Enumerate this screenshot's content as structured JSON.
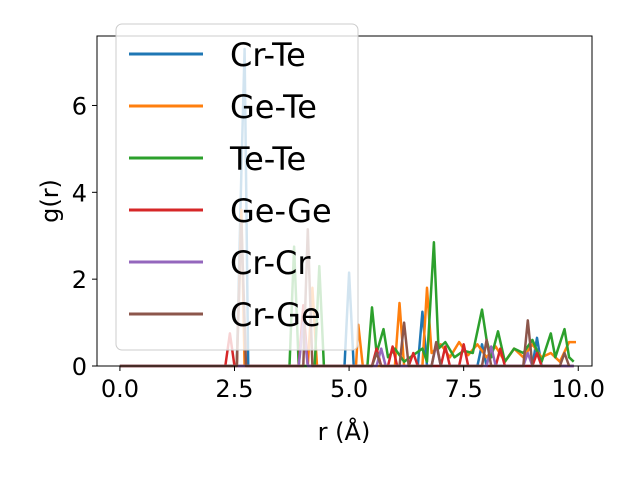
{
  "chart_data": {
    "type": "line",
    "title": "",
    "xlabel": "r (Å)",
    "ylabel": "g(r)",
    "xlim": [
      -0.5,
      10.3
    ],
    "ylim": [
      0,
      7.6
    ],
    "xticks": [
      0.0,
      2.5,
      5.0,
      7.5,
      10.0
    ],
    "xtick_labels": [
      "0.0",
      "2.5",
      "5.0",
      "7.5",
      "10.0"
    ],
    "yticks": [
      0,
      2,
      4,
      6
    ],
    "ytick_labels": [
      "0",
      "2",
      "4",
      "6"
    ],
    "grid": false,
    "legend_position": "upper-left",
    "series": [
      {
        "name": "Cr-Te",
        "color": "#1f77b4",
        "points": [
          [
            0,
            0
          ],
          [
            2.55,
            0
          ],
          [
            2.65,
            4.5
          ],
          [
            2.72,
            7.3
          ],
          [
            2.8,
            0
          ],
          [
            4.9,
            0
          ],
          [
            5.0,
            2.15
          ],
          [
            5.1,
            0
          ],
          [
            6.5,
            0
          ],
          [
            6.6,
            1.25
          ],
          [
            6.7,
            0
          ],
          [
            7.8,
            0
          ],
          [
            7.9,
            0.5
          ],
          [
            8.0,
            0
          ],
          [
            9.0,
            0
          ],
          [
            9.1,
            0.65
          ],
          [
            9.2,
            0
          ],
          [
            9.9,
            0
          ]
        ]
      },
      {
        "name": "Ge-Te",
        "color": "#ff7f0e",
        "points": [
          [
            0,
            0
          ],
          [
            2.55,
            0
          ],
          [
            2.65,
            3.6
          ],
          [
            2.72,
            0
          ],
          [
            4.1,
            0
          ],
          [
            4.2,
            1.8
          ],
          [
            4.3,
            0
          ],
          [
            5.15,
            0
          ],
          [
            5.2,
            0.95
          ],
          [
            5.3,
            0
          ],
          [
            6.0,
            0
          ],
          [
            6.1,
            1.45
          ],
          [
            6.2,
            0
          ],
          [
            6.6,
            0
          ],
          [
            6.7,
            1.8
          ],
          [
            6.8,
            0.3
          ],
          [
            7.0,
            0.5
          ],
          [
            7.2,
            0.2
          ],
          [
            7.4,
            0.55
          ],
          [
            7.6,
            0.25
          ],
          [
            7.8,
            0.5
          ],
          [
            8.0,
            0.2
          ],
          [
            8.2,
            0.45
          ],
          [
            8.4,
            0.1
          ],
          [
            8.6,
            0.4
          ],
          [
            8.8,
            0.2
          ],
          [
            9.0,
            0.5
          ],
          [
            9.2,
            0.2
          ],
          [
            9.4,
            0.3
          ],
          [
            9.6,
            0.1
          ],
          [
            9.8,
            0.55
          ],
          [
            9.95,
            0.55
          ]
        ]
      },
      {
        "name": "Te-Te",
        "color": "#2ca02c",
        "points": [
          [
            0,
            0
          ],
          [
            3.7,
            0
          ],
          [
            3.8,
            2.75
          ],
          [
            3.9,
            0
          ],
          [
            4.25,
            0
          ],
          [
            4.35,
            2.3
          ],
          [
            4.45,
            0
          ],
          [
            5.4,
            0
          ],
          [
            5.5,
            1.35
          ],
          [
            5.6,
            0.3
          ],
          [
            5.75,
            0.85
          ],
          [
            5.85,
            0.2
          ],
          [
            6.0,
            0.4
          ],
          [
            6.2,
            0.1
          ],
          [
            6.4,
            0.25
          ],
          [
            6.6,
            0.4
          ],
          [
            6.7,
            0.1
          ],
          [
            6.85,
            2.85
          ],
          [
            6.95,
            0.4
          ],
          [
            7.1,
            0.55
          ],
          [
            7.3,
            0.2
          ],
          [
            7.5,
            0.35
          ],
          [
            7.7,
            0.3
          ],
          [
            7.9,
            1.3
          ],
          [
            8.0,
            0.6
          ],
          [
            8.1,
            0.2
          ],
          [
            8.25,
            0.8
          ],
          [
            8.4,
            0.1
          ],
          [
            8.6,
            0.4
          ],
          [
            8.8,
            0.3
          ],
          [
            9.0,
            0.6
          ],
          [
            9.2,
            0.1
          ],
          [
            9.4,
            0.75
          ],
          [
            9.5,
            0.2
          ],
          [
            9.7,
            0.85
          ],
          [
            9.8,
            0.2
          ],
          [
            9.9,
            0.1
          ]
        ]
      },
      {
        "name": "Ge-Ge",
        "color": "#d62728",
        "points": [
          [
            0,
            0
          ],
          [
            2.3,
            0
          ],
          [
            2.4,
            0.75
          ],
          [
            2.5,
            0
          ],
          [
            3.9,
            0
          ],
          [
            4.0,
            1.4
          ],
          [
            4.1,
            0
          ],
          [
            5.5,
            0
          ],
          [
            5.6,
            0.4
          ],
          [
            5.7,
            0
          ],
          [
            5.85,
            0
          ],
          [
            5.95,
            0.45
          ],
          [
            6.05,
            0
          ],
          [
            6.3,
            0
          ],
          [
            6.4,
            0.3
          ],
          [
            6.5,
            0
          ],
          [
            7.0,
            0
          ],
          [
            7.1,
            0.45
          ],
          [
            7.2,
            0
          ],
          [
            7.4,
            0
          ],
          [
            7.5,
            0.5
          ],
          [
            7.6,
            0
          ],
          [
            8.2,
            0
          ],
          [
            8.3,
            0.4
          ],
          [
            8.4,
            0
          ],
          [
            9.0,
            0
          ],
          [
            9.1,
            0.3
          ],
          [
            9.2,
            0
          ],
          [
            9.9,
            0
          ]
        ]
      },
      {
        "name": "Cr-Cr",
        "color": "#9467bd",
        "points": [
          [
            0,
            0
          ],
          [
            3.9,
            0
          ],
          [
            4.0,
            1.0
          ],
          [
            4.1,
            0
          ],
          [
            5.6,
            0
          ],
          [
            5.7,
            0.4
          ],
          [
            5.8,
            0
          ],
          [
            6.8,
            0
          ],
          [
            6.9,
            0.5
          ],
          [
            7.0,
            0
          ],
          [
            8.0,
            0
          ],
          [
            8.1,
            0.45
          ],
          [
            8.2,
            0
          ],
          [
            8.8,
            0
          ],
          [
            8.9,
            0.3
          ],
          [
            9.0,
            0
          ],
          [
            9.9,
            0
          ]
        ]
      },
      {
        "name": "Cr-Ge",
        "color": "#8c564b",
        "points": [
          [
            0,
            0
          ],
          [
            2.55,
            0
          ],
          [
            2.65,
            3.3
          ],
          [
            2.75,
            0
          ],
          [
            4.0,
            0
          ],
          [
            4.1,
            3.15
          ],
          [
            4.2,
            0
          ],
          [
            5.5,
            0
          ],
          [
            5.6,
            0.3
          ],
          [
            5.7,
            0
          ],
          [
            6.1,
            0
          ],
          [
            6.2,
            1.0
          ],
          [
            6.3,
            0
          ],
          [
            6.8,
            0
          ],
          [
            6.9,
            0.55
          ],
          [
            7.0,
            0
          ],
          [
            7.9,
            0
          ],
          [
            8.0,
            0.6
          ],
          [
            8.1,
            0
          ],
          [
            8.8,
            0
          ],
          [
            8.9,
            1.05
          ],
          [
            9.0,
            0
          ],
          [
            9.6,
            0
          ],
          [
            9.7,
            0.3
          ],
          [
            9.8,
            0
          ]
        ]
      }
    ]
  }
}
